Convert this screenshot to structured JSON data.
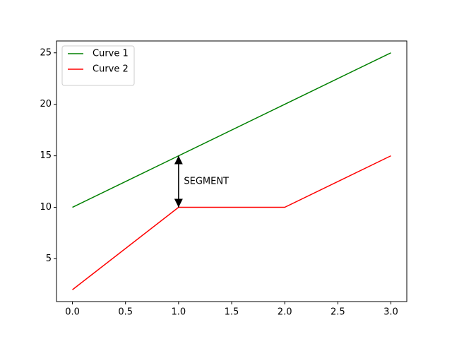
{
  "chart_data": {
    "type": "line",
    "x": [
      0,
      1,
      2,
      3
    ],
    "series": [
      {
        "name": "Curve 1",
        "color": "#008000",
        "values": [
          10,
          15,
          20,
          25
        ]
      },
      {
        "name": "Curve 2",
        "color": "#ff0000",
        "values": [
          2,
          10,
          10,
          15
        ]
      }
    ],
    "xlim": [
      -0.15,
      3.15
    ],
    "xticks": [
      {
        "value": 0,
        "label": "0.0"
      },
      0.5,
      {
        "value": 1,
        "label": "1.0"
      },
      1.5,
      {
        "value": 2,
        "label": "2.0"
      },
      2.5,
      {
        "value": 3,
        "label": "3.0"
      }
    ],
    "ylim": [
      0.85,
      26.15
    ],
    "yticks": [
      5,
      10,
      15,
      20,
      25
    ],
    "legend": "upper left",
    "annotations": [
      {
        "text": "SEGMENT",
        "x": 1.05,
        "y": 12.5,
        "arrow_x": 1,
        "arrow_from": 15,
        "arrow_to": 10
      }
    ]
  }
}
